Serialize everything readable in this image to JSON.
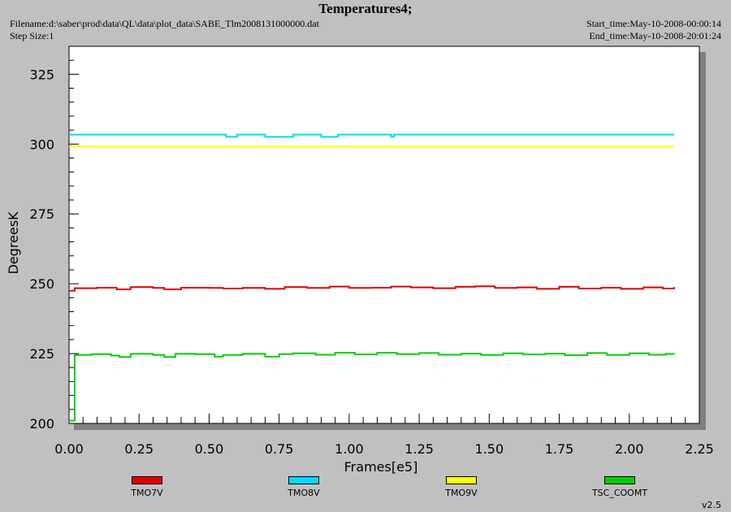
{
  "header": {
    "title": "Temperatures4;",
    "filename": "Filename:d:\\saber\\prod\\data\\QL\\data\\plot_data\\SABE_Tlm2008131000000.dat",
    "step_size": "Step Size:1",
    "start_time": "Start_time:May-10-2008-00:00:14",
    "end_time": "End_time:May-10-2008-20:01:24"
  },
  "version": "v2.5",
  "chart_data": {
    "type": "line",
    "title": "Temperatures4;",
    "xlabel": "Frames[e5]",
    "ylabel": "DegreesK",
    "xlim": [
      0.0,
      2.25
    ],
    "ylim": [
      200,
      335
    ],
    "xticks": [
      0.0,
      0.25,
      0.5,
      0.75,
      1.0,
      1.25,
      1.5,
      1.75,
      2.0,
      2.25
    ],
    "xtick_labels": [
      "0.00",
      "0.25",
      "0.50",
      "0.75",
      "1.00",
      "1.25",
      "1.50",
      "1.75",
      "2.00",
      "2.25"
    ],
    "yticks": [
      200,
      225,
      250,
      275,
      300,
      325
    ],
    "ytick_labels": [
      "200",
      "225",
      "250",
      "275",
      "300",
      "325"
    ],
    "grid": false,
    "legend_position": "bottom",
    "series": [
      {
        "name": "TMO7V",
        "color": "#e00000",
        "x": [
          0.0,
          0.02,
          0.1,
          0.17,
          0.22,
          0.3,
          0.34,
          0.4,
          0.5,
          0.55,
          0.62,
          0.7,
          0.77,
          0.85,
          0.93,
          1.0,
          1.08,
          1.15,
          1.22,
          1.3,
          1.38,
          1.45,
          1.52,
          1.6,
          1.67,
          1.75,
          1.82,
          1.9,
          1.97,
          2.05,
          2.12,
          2.16
        ],
        "values": [
          247.5,
          248.4,
          248.6,
          248.0,
          248.8,
          248.5,
          248.0,
          248.6,
          248.5,
          248.3,
          248.5,
          248.2,
          248.8,
          248.5,
          249.0,
          248.5,
          248.6,
          249.0,
          248.7,
          248.4,
          248.9,
          249.1,
          248.5,
          248.7,
          248.2,
          248.9,
          248.3,
          248.6,
          248.2,
          248.7,
          248.3,
          248.8
        ]
      },
      {
        "name": "TMO8V",
        "color": "#00d8ff",
        "x": [
          0.0,
          0.55,
          0.56,
          0.58,
          0.6,
          0.67,
          0.7,
          0.72,
          0.77,
          0.8,
          0.88,
          0.9,
          0.94,
          0.96,
          1.14,
          1.15,
          1.16,
          2.16
        ],
        "values": [
          303.4,
          303.4,
          302.6,
          302.6,
          303.4,
          303.4,
          302.6,
          302.6,
          302.6,
          303.4,
          303.4,
          302.6,
          302.6,
          303.4,
          303.4,
          302.6,
          303.4,
          303.4
        ]
      },
      {
        "name": "TMO9V",
        "color": "#ffff00",
        "x": [
          0.0,
          2.16
        ],
        "values": [
          299.1,
          299.1
        ]
      },
      {
        "name": "TSC_COOMT",
        "color": "#00d000",
        "x": [
          0.0,
          0.02,
          0.08,
          0.15,
          0.18,
          0.22,
          0.3,
          0.34,
          0.38,
          0.45,
          0.52,
          0.55,
          0.62,
          0.7,
          0.75,
          0.8,
          0.88,
          0.95,
          1.02,
          1.1,
          1.17,
          1.25,
          1.32,
          1.4,
          1.47,
          1.55,
          1.62,
          1.7,
          1.77,
          1.85,
          1.92,
          2.0,
          2.07,
          2.13,
          2.16
        ],
        "values": [
          201.0,
          224.5,
          224.8,
          224.3,
          223.8,
          224.9,
          224.5,
          223.8,
          224.9,
          224.8,
          223.9,
          224.5,
          224.9,
          223.9,
          224.8,
          225.1,
          224.6,
          225.3,
          224.7,
          225.3,
          224.8,
          225.2,
          224.6,
          225.0,
          224.5,
          225.1,
          224.7,
          225.0,
          224.4,
          225.2,
          224.5,
          225.1,
          224.6,
          224.9,
          225.1
        ]
      }
    ]
  },
  "legend": [
    {
      "label": "TMO7V",
      "color": "#e00000"
    },
    {
      "label": "TMO8V",
      "color": "#00d8ff"
    },
    {
      "label": "TMO9V",
      "color": "#ffff00"
    },
    {
      "label": "TSC_COOMT",
      "color": "#00d000"
    }
  ]
}
